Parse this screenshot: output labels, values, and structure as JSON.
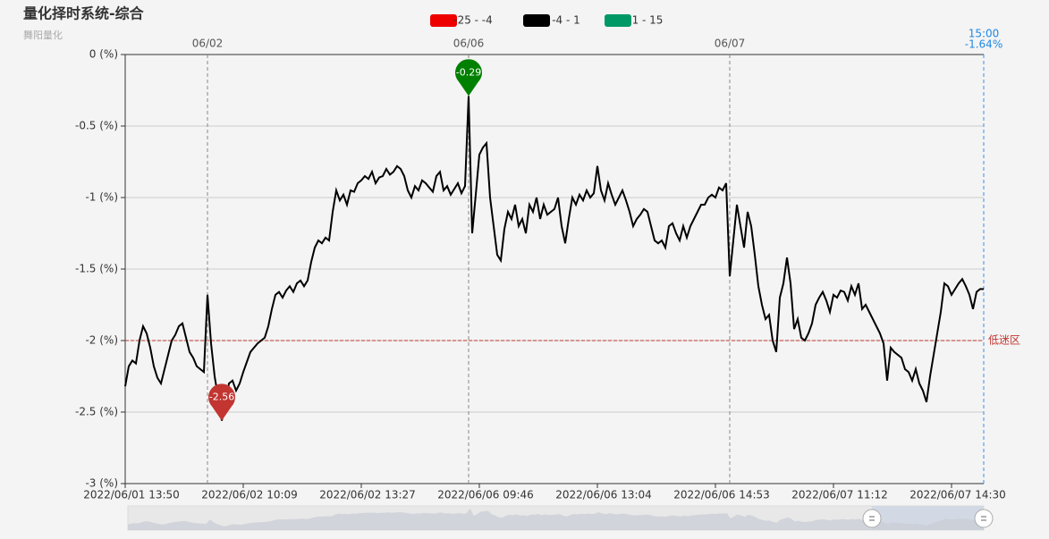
{
  "chart_data": {
    "type": "line",
    "title": "量化择时系统-综合",
    "subtitle": "舞阳量化",
    "categories": [
      "2022/06/01 13:50",
      null,
      null,
      null,
      null,
      null,
      null,
      null,
      null,
      null,
      null,
      null,
      null,
      null,
      null,
      null,
      null,
      null,
      null,
      null,
      null,
      null,
      null,
      null,
      null,
      null,
      null,
      null,
      null,
      null,
      null,
      null,
      null,
      "2022/06/02 10:09",
      null,
      null,
      null,
      null,
      null,
      null,
      null,
      null,
      null,
      null,
      null,
      null,
      null,
      null,
      null,
      null,
      null,
      null,
      null,
      null,
      null,
      null,
      null,
      null,
      null,
      null,
      null,
      null,
      null,
      null,
      null,
      null,
      "2022/06/02 13:27",
      null,
      null,
      null,
      null,
      null,
      null,
      null,
      null,
      null,
      null,
      null,
      null,
      null,
      null,
      null,
      null,
      null,
      null,
      null,
      null,
      null,
      null,
      null,
      null,
      null,
      null,
      null,
      null,
      null,
      null,
      null,
      null,
      "2022/06/06 09:46",
      null,
      null,
      null,
      null,
      null,
      null,
      null,
      null,
      null,
      null,
      null,
      null,
      null,
      null,
      null,
      null,
      null,
      null,
      null,
      null,
      null,
      null,
      null,
      null,
      null,
      null,
      null,
      null,
      null,
      null,
      null,
      null,
      "2022/06/06 13:04",
      null,
      null,
      null,
      null,
      null,
      null,
      null,
      null,
      null,
      null,
      null,
      null,
      null,
      null,
      null,
      null,
      null,
      null,
      null,
      null,
      null,
      null,
      null,
      null,
      null,
      null,
      null,
      null,
      null,
      null,
      null,
      null,
      "2022/06/06 14:53",
      null,
      null,
      null,
      null,
      null,
      null,
      null,
      null,
      null,
      null,
      null,
      null,
      null,
      null,
      null,
      null,
      null,
      null,
      null,
      null,
      null,
      null,
      null,
      null,
      null,
      null,
      null,
      null,
      null,
      null,
      null,
      null,
      "2022/06/07 11:12",
      null,
      null,
      null,
      null,
      null,
      null,
      null,
      null,
      null,
      null,
      null,
      null,
      null,
      null,
      null,
      null,
      null,
      null,
      null,
      null,
      null,
      null,
      null,
      null,
      null,
      null,
      null,
      null,
      null,
      null,
      null,
      null,
      "2022/06/07 14:30",
      null,
      null,
      null,
      null,
      null,
      null,
      null,
      null,
      null
    ],
    "series": [
      {
        "color": "#000000",
        "values": [
          -2.32,
          -2.18,
          -2.14,
          -2.16,
          -2.0,
          -1.9,
          -1.95,
          -2.05,
          -2.18,
          -2.26,
          -2.3,
          -2.2,
          -2.1,
          -2.0,
          -1.96,
          -1.9,
          -1.88,
          -1.98,
          -2.08,
          -2.12,
          -2.18,
          -2.2,
          -2.22,
          -1.68,
          -2.02,
          -2.25,
          -2.4,
          -2.56,
          -2.45,
          -2.3,
          -2.28,
          -2.35,
          -2.3,
          -2.22,
          -2.15,
          -2.08,
          -2.05,
          -2.02,
          -2.0,
          -1.98,
          -1.9,
          -1.78,
          -1.68,
          -1.66,
          -1.7,
          -1.65,
          -1.62,
          -1.66,
          -1.6,
          -1.58,
          -1.62,
          -1.58,
          -1.45,
          -1.35,
          -1.3,
          -1.32,
          -1.28,
          -1.3,
          -1.1,
          -0.95,
          -1.02,
          -0.98,
          -1.05,
          -0.95,
          -0.96,
          -0.9,
          -0.88,
          -0.85,
          -0.87,
          -0.82,
          -0.9,
          -0.86,
          -0.85,
          -0.8,
          -0.84,
          -0.82,
          -0.78,
          -0.8,
          -0.85,
          -0.95,
          -1.0,
          -0.92,
          -0.95,
          -0.88,
          -0.9,
          -0.93,
          -0.96,
          -0.85,
          -0.82,
          -0.95,
          -0.92,
          -0.98,
          -0.94,
          -0.9,
          -0.97,
          -0.92,
          -0.29,
          -1.25,
          -0.98,
          -0.7,
          -0.65,
          -0.62,
          -1.0,
          -1.2,
          -1.4,
          -1.44,
          -1.22,
          -1.1,
          -1.15,
          -1.05,
          -1.2,
          -1.15,
          -1.25,
          -1.05,
          -1.1,
          -1.0,
          -1.15,
          -1.05,
          -1.12,
          -1.1,
          -1.08,
          -1.0,
          -1.2,
          -1.32,
          -1.15,
          -1.0,
          -1.05,
          -0.98,
          -1.02,
          -0.95,
          -1.0,
          -0.97,
          -0.78,
          -0.95,
          -1.02,
          -0.9,
          -0.98,
          -1.05,
          -1.0,
          -0.95,
          -1.02,
          -1.1,
          -1.2,
          -1.15,
          -1.12,
          -1.08,
          -1.1,
          -1.2,
          -1.3,
          -1.32,
          -1.3,
          -1.35,
          -1.2,
          -1.18,
          -1.25,
          -1.3,
          -1.2,
          -1.28,
          -1.2,
          -1.15,
          -1.1,
          -1.05,
          -1.05,
          -1.0,
          -0.98,
          -1.0,
          -0.93,
          -0.95,
          -0.9,
          -1.55,
          -1.3,
          -1.05,
          -1.2,
          -1.35,
          -1.1,
          -1.2,
          -1.4,
          -1.62,
          -1.75,
          -1.85,
          -1.82,
          -2.0,
          -2.08,
          -1.7,
          -1.6,
          -1.42,
          -1.6,
          -1.92,
          -1.85,
          -1.98,
          -2.0,
          -1.95,
          -1.88,
          -1.75,
          -1.7,
          -1.66,
          -1.72,
          -1.8,
          -1.68,
          -1.7,
          -1.65,
          -1.66,
          -1.72,
          -1.62,
          -1.68,
          -1.6,
          -1.78,
          -1.75,
          -1.8,
          -1.85,
          -1.9,
          -1.95,
          -2.02,
          -2.28,
          -2.05,
          -2.08,
          -2.1,
          -2.12,
          -2.2,
          -2.22,
          -2.28,
          -2.2,
          -2.3,
          -2.35,
          -2.43,
          -2.25,
          -2.1,
          -1.95,
          -1.8,
          -1.6,
          -1.62,
          -1.68,
          -1.64,
          -1.6,
          -1.57,
          -1.62,
          -1.68,
          -1.78,
          -1.66,
          -1.64,
          -1.64
        ]
      }
    ],
    "ylim": [
      -3,
      0
    ],
    "yticks": [
      {
        "value": 0,
        "label": "0 (%)"
      },
      {
        "value": -0.5,
        "label": "-0.5 (%)"
      },
      {
        "value": -1,
        "label": "-1 (%)"
      },
      {
        "value": -1.5,
        "label": "-1.5 (%)"
      },
      {
        "value": -2,
        "label": "-2 (%)"
      },
      {
        "value": -2.5,
        "label": "-2.5 (%)"
      },
      {
        "value": -3,
        "label": "-3 (%)"
      }
    ],
    "grid": true,
    "legend": [
      {
        "label": "-25 - -4",
        "color": "#ee0000"
      },
      {
        "label": "-4 - 1",
        "color": "#000000"
      },
      {
        "label": "1 - 15",
        "color": "#009966"
      }
    ],
    "day_markers": [
      {
        "index": 23,
        "label": "06/02"
      },
      {
        "index": 96,
        "label": "06/06"
      },
      {
        "index": 169,
        "label": "06/07"
      }
    ],
    "end_label": {
      "time": "15:00",
      "label": "-1.64%"
    },
    "mark_line": {
      "value": -2,
      "label": "低迷区",
      "color": "#c23531"
    },
    "mark_points": [
      {
        "index": 96,
        "value": -0.29,
        "color": "#008000"
      },
      {
        "index": 27,
        "value": -2.56,
        "color": "#c23531"
      }
    ]
  }
}
